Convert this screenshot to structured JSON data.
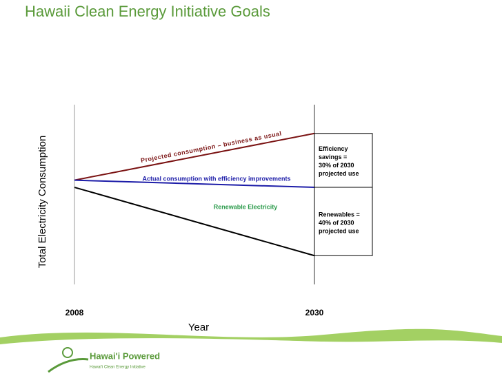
{
  "chart_data": {
    "type": "line",
    "title": "Hawaii Clean Energy Initiative Goals",
    "y_label": "Total Electricity Consumption",
    "x_label": "Year",
    "x": [
      2008,
      2030
    ],
    "xlim": [
      2008,
      2030
    ],
    "xticks": [
      2008,
      2030
    ],
    "ylim": [
      0,
      100
    ],
    "series": [
      {
        "name": "Projected consumption – business as usual",
        "color": "#7a1212",
        "values": [
          58,
          84
        ]
      },
      {
        "name": "Actual consumption with efficiency improvements",
        "color": "#1c1ca8",
        "values": [
          58,
          54
        ]
      },
      {
        "color": "#000000",
        "values": [
          54,
          16
        ]
      }
    ],
    "annotations": [
      {
        "text": "Renewable Electricity",
        "color": "#2a9a4a"
      },
      {
        "lines": [
          "Efficiency",
          "savings =",
          "30% of 2030",
          "projected use"
        ]
      },
      {
        "lines": [
          "Renewables =",
          "40% of 2030",
          "projected use"
        ]
      }
    ],
    "logo": {
      "title": "Hawai'i Powered",
      "subtitle": "Hawai'i Clean Energy Initiative"
    }
  }
}
